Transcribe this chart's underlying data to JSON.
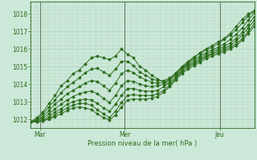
{
  "xlabel": "Pression niveau de la mer( hPa )",
  "bg_color": "#cce8d8",
  "grid_color": "#aaccbb",
  "line_color": "#2d6e1e",
  "sep_color": "#667766",
  "ylim": [
    1011.5,
    1018.7
  ],
  "yticks": [
    1012,
    1013,
    1014,
    1015,
    1016,
    1017,
    1018
  ],
  "day_labels": [
    "Mar",
    "Mer",
    "Jeu"
  ],
  "day_positions": [
    0.04,
    0.42,
    0.845
  ],
  "series": [
    [
      1011.85,
      1012.1,
      1012.4,
      1012.9,
      1013.35,
      1013.9,
      1014.2,
      1014.6,
      1014.8,
      1015.15,
      1015.5,
      1015.6,
      1015.5,
      1015.4,
      1015.6,
      1016.0,
      1015.7,
      1015.5,
      1015.0,
      1014.8,
      1014.5,
      1014.3,
      1014.1,
      1014.0,
      1014.3,
      1014.8,
      1015.2,
      1015.5,
      1015.8,
      1016.0,
      1016.2,
      1016.4,
      1016.6,
      1016.9,
      1017.3,
      1017.7,
      1018.0,
      1018.2
    ],
    [
      1011.85,
      1012.0,
      1012.3,
      1012.7,
      1013.1,
      1013.5,
      1013.85,
      1014.1,
      1014.35,
      1014.65,
      1014.85,
      1014.9,
      1014.7,
      1014.5,
      1014.85,
      1015.3,
      1015.3,
      1015.05,
      1014.7,
      1014.5,
      1014.3,
      1014.2,
      1014.2,
      1014.35,
      1014.65,
      1015.0,
      1015.3,
      1015.55,
      1015.75,
      1015.95,
      1016.1,
      1016.3,
      1016.55,
      1016.8,
      1017.1,
      1017.5,
      1017.9,
      1018.15
    ],
    [
      1011.85,
      1011.95,
      1012.15,
      1012.5,
      1012.85,
      1013.15,
      1013.45,
      1013.65,
      1013.85,
      1014.05,
      1014.2,
      1014.15,
      1013.9,
      1013.65,
      1014.05,
      1014.6,
      1014.8,
      1014.65,
      1014.4,
      1014.25,
      1014.1,
      1014.05,
      1014.1,
      1014.3,
      1014.6,
      1014.95,
      1015.2,
      1015.4,
      1015.6,
      1015.8,
      1015.95,
      1016.1,
      1016.3,
      1016.55,
      1016.85,
      1017.2,
      1017.65,
      1018.05
    ],
    [
      1011.85,
      1011.9,
      1012.05,
      1012.3,
      1012.6,
      1012.85,
      1013.1,
      1013.3,
      1013.45,
      1013.55,
      1013.6,
      1013.45,
      1013.2,
      1012.95,
      1013.35,
      1013.9,
      1014.2,
      1014.15,
      1014.0,
      1013.9,
      1013.85,
      1013.9,
      1014.0,
      1014.25,
      1014.55,
      1014.9,
      1015.1,
      1015.3,
      1015.5,
      1015.7,
      1015.85,
      1016.0,
      1016.15,
      1016.35,
      1016.6,
      1016.95,
      1017.4,
      1017.85
    ],
    [
      1011.85,
      1011.85,
      1011.95,
      1012.15,
      1012.4,
      1012.6,
      1012.85,
      1013.0,
      1013.1,
      1013.15,
      1013.1,
      1012.9,
      1012.65,
      1012.45,
      1012.85,
      1013.35,
      1013.75,
      1013.75,
      1013.65,
      1013.6,
      1013.6,
      1013.65,
      1013.85,
      1014.1,
      1014.45,
      1014.8,
      1015.05,
      1015.2,
      1015.4,
      1015.6,
      1015.75,
      1015.9,
      1016.05,
      1016.2,
      1016.45,
      1016.8,
      1017.2,
      1017.65
    ],
    [
      1011.85,
      1011.85,
      1011.9,
      1012.05,
      1012.25,
      1012.45,
      1012.65,
      1012.8,
      1012.9,
      1012.9,
      1012.8,
      1012.55,
      1012.3,
      1012.1,
      1012.45,
      1012.95,
      1013.35,
      1013.4,
      1013.35,
      1013.35,
      1013.35,
      1013.45,
      1013.65,
      1013.95,
      1014.35,
      1014.7,
      1014.95,
      1015.15,
      1015.35,
      1015.55,
      1015.7,
      1015.8,
      1015.95,
      1016.1,
      1016.3,
      1016.6,
      1017.0,
      1017.45
    ],
    [
      1011.85,
      1011.85,
      1011.9,
      1012.0,
      1012.15,
      1012.3,
      1012.5,
      1012.65,
      1012.7,
      1012.65,
      1012.55,
      1012.3,
      1012.1,
      1011.95,
      1012.25,
      1012.7,
      1013.1,
      1013.15,
      1013.15,
      1013.15,
      1013.2,
      1013.3,
      1013.55,
      1013.85,
      1014.25,
      1014.6,
      1014.85,
      1015.05,
      1015.25,
      1015.45,
      1015.6,
      1015.72,
      1015.85,
      1016.0,
      1016.2,
      1016.5,
      1016.9,
      1017.3
    ]
  ]
}
